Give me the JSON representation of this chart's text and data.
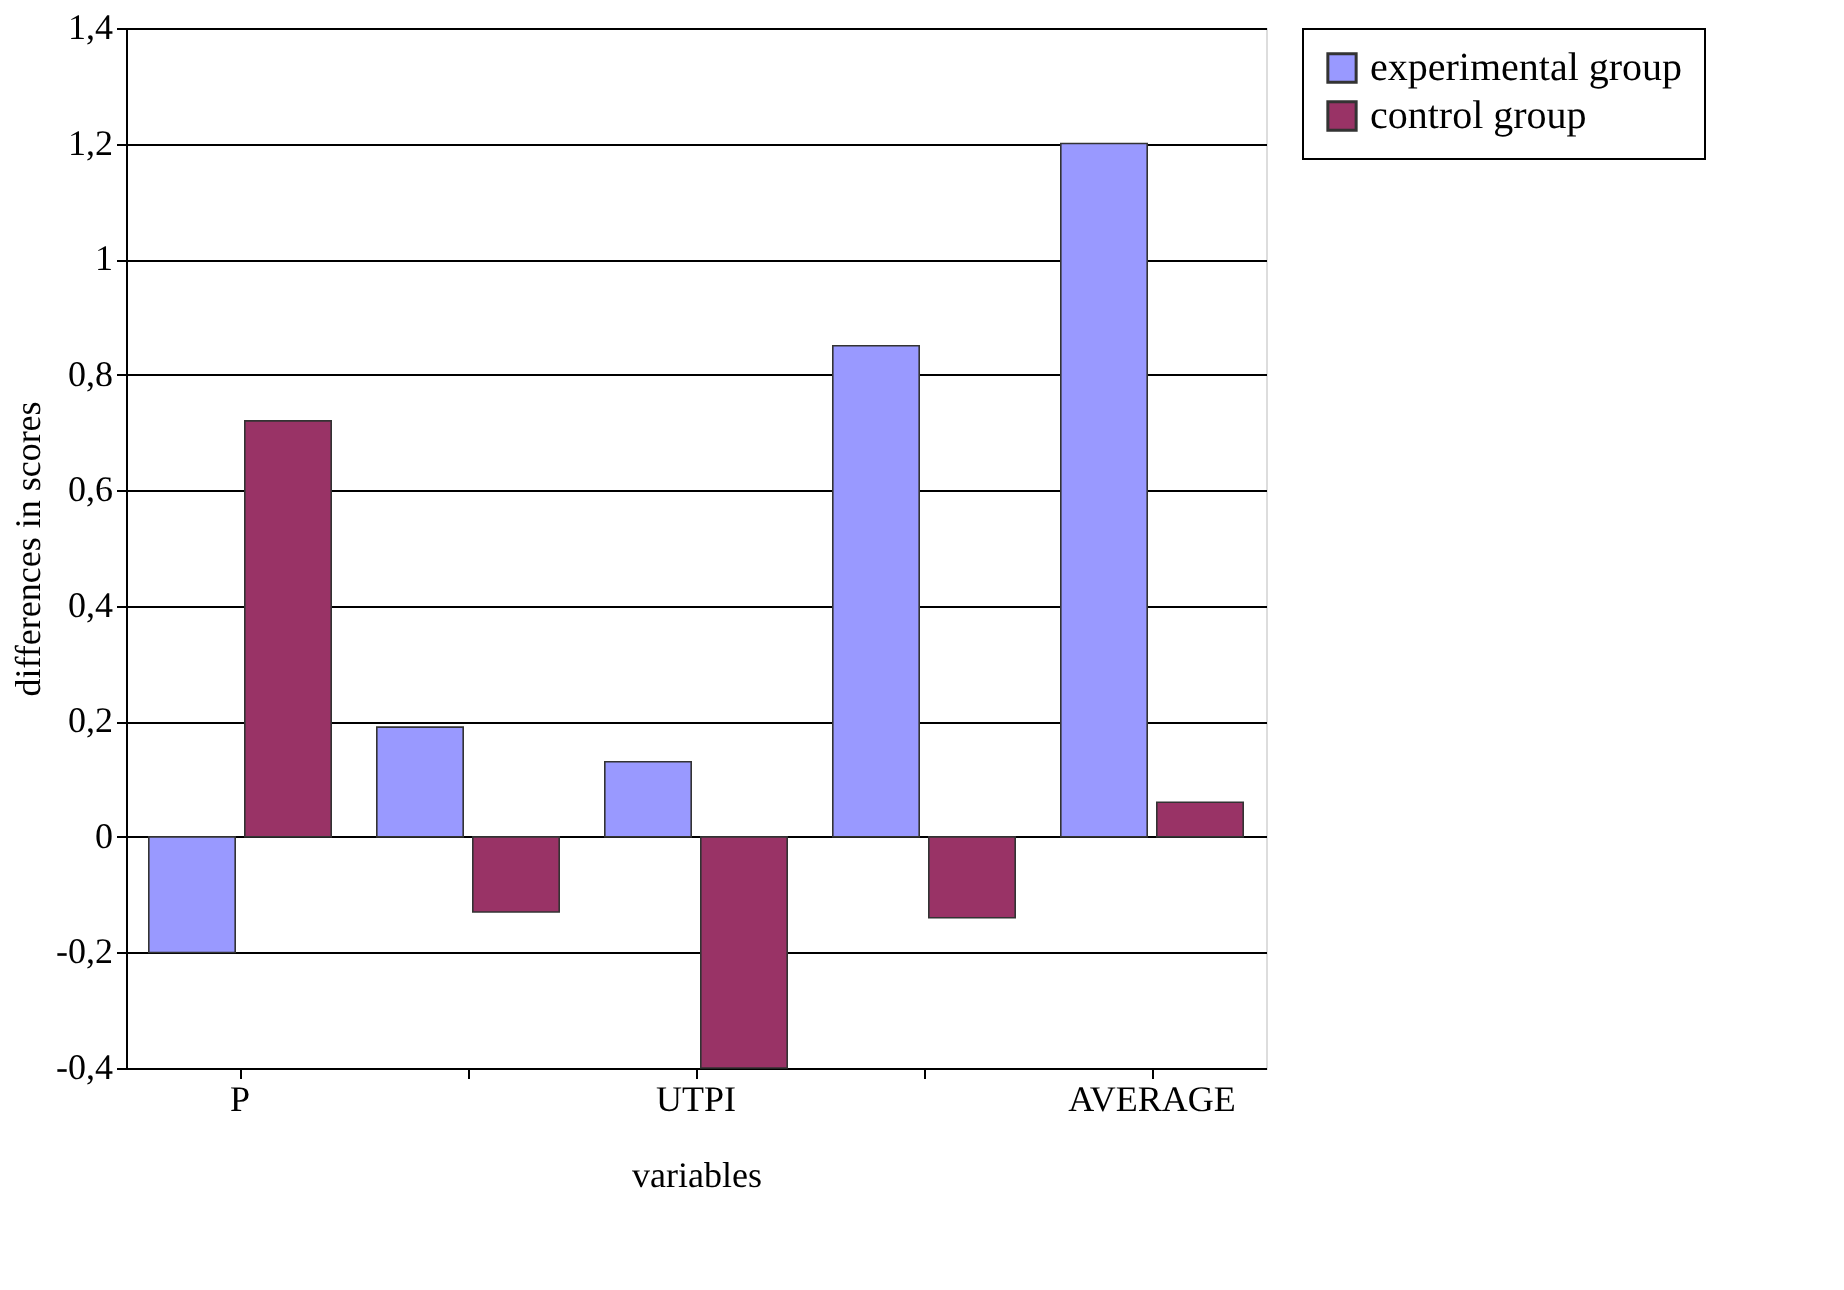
{
  "chart_data": {
    "type": "bar",
    "xlabel": "variables",
    "ylabel": "differences in scores",
    "categories": [
      "P",
      null,
      "UTPI",
      null,
      "AVERAGE"
    ],
    "series": [
      {
        "name": "experimental group",
        "color": "#9999ff",
        "values": [
          -0.2,
          0.19,
          0.13,
          0.85,
          1.2
        ]
      },
      {
        "name": "control group",
        "color": "#993366",
        "values": [
          0.72,
          -0.13,
          -0.4,
          -0.14,
          0.06
        ]
      }
    ],
    "ylim": [
      -0.4,
      1.4
    ],
    "yticks": [
      {
        "value": -0.4,
        "label": "-0,4"
      },
      {
        "value": -0.2,
        "label": "-0,2"
      },
      0,
      {
        "value": 0.2,
        "label": "0,2"
      },
      {
        "value": 0.4,
        "label": "0,4"
      },
      {
        "value": 0.6,
        "label": "0,6"
      },
      {
        "value": 0.8,
        "label": "0,8"
      },
      1,
      {
        "value": 1.2,
        "label": "1,2"
      },
      {
        "value": 1.4,
        "label": "1,4"
      }
    ],
    "grid": "y",
    "legend": "top right"
  }
}
